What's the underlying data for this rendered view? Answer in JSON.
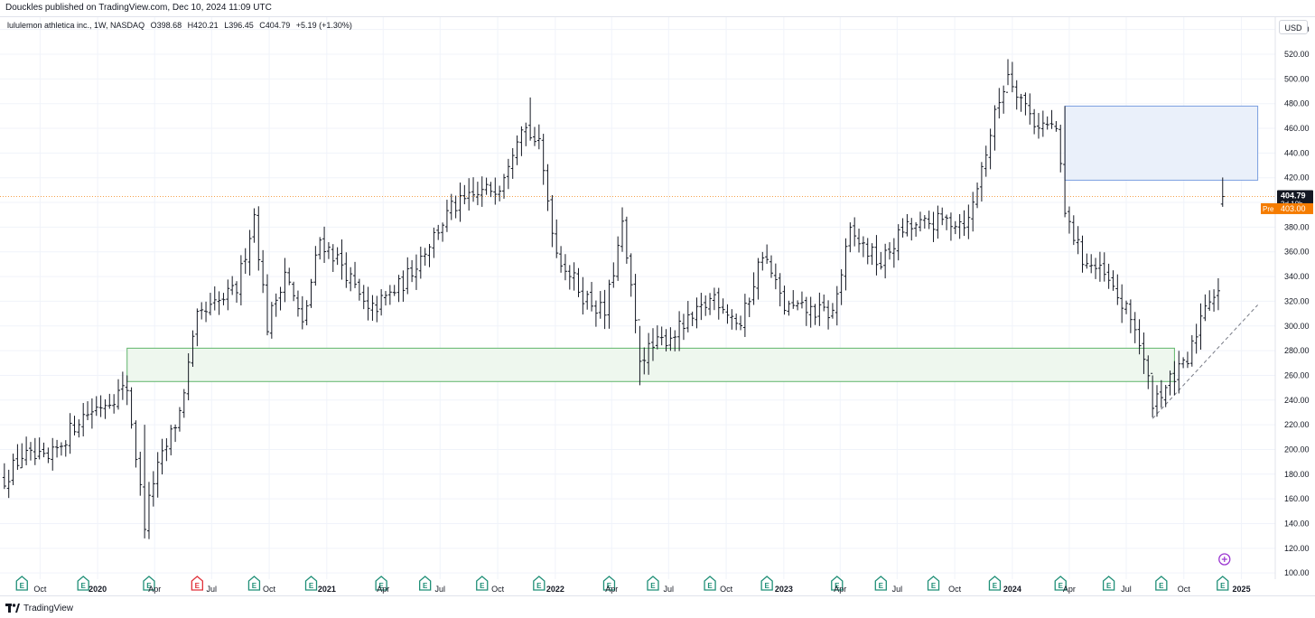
{
  "header": {
    "text": "Douckles published on TradingView.com, Dec 10, 2024 11:09 UTC"
  },
  "legend": {
    "name": "lululemon athletica inc., 1W, NASDAQ",
    "o": "O398.68",
    "h": "H420.21",
    "l": "L396.45",
    "c": "C404.79",
    "change": "+5.19 (+1.30%)"
  },
  "axis": {
    "currency": "USD",
    "last_price_label": "404.79",
    "countdown_label": "3d 10h",
    "pre_tag": "Pre",
    "pre_price_label": "403.00"
  },
  "footer": {
    "brand": "TradingView"
  },
  "colors": {
    "bars": "#131722",
    "grid": "#f0f3fa",
    "support_fill": "#eef7ee",
    "support_border": "#5fb56a",
    "resistance_fill": "#eaf0fa",
    "resistance_border": "#7b9fe0",
    "price_line": "#f5a14b",
    "pre_tag": "#f57c00",
    "earnings": "#1f8f77",
    "earnings_red": "#e0313a",
    "trendline": "#787b86"
  },
  "chart_data": {
    "type": "ohlc",
    "interval": "1W",
    "ylim": [
      95,
      550
    ],
    "y_ticks": [
      100,
      120,
      140,
      160,
      180,
      200,
      220,
      240,
      260,
      280,
      300,
      320,
      340,
      360,
      380,
      400,
      420,
      440,
      460,
      480,
      500,
      520,
      540
    ],
    "x_labels": [
      {
        "label": "Oct",
        "date": "2019-10-01"
      },
      {
        "label": "2020",
        "date": "2020-01-01"
      },
      {
        "label": "Apr",
        "date": "2020-04-01"
      },
      {
        "label": "Jul",
        "date": "2020-07-01"
      },
      {
        "label": "Oct",
        "date": "2020-10-01"
      },
      {
        "label": "2021",
        "date": "2021-01-01"
      },
      {
        "label": "Apr",
        "date": "2021-04-01"
      },
      {
        "label": "Jul",
        "date": "2021-07-01"
      },
      {
        "label": "Oct",
        "date": "2021-10-01"
      },
      {
        "label": "2022",
        "date": "2022-01-01"
      },
      {
        "label": "Apr",
        "date": "2022-04-01"
      },
      {
        "label": "Jul",
        "date": "2022-07-01"
      },
      {
        "label": "Oct",
        "date": "2022-10-01"
      },
      {
        "label": "2023",
        "date": "2023-01-01"
      },
      {
        "label": "Apr",
        "date": "2023-04-01"
      },
      {
        "label": "Jul",
        "date": "2023-07-01"
      },
      {
        "label": "Oct",
        "date": "2023-10-01"
      },
      {
        "label": "2024",
        "date": "2024-01-01"
      },
      {
        "label": "Apr",
        "date": "2024-04-01"
      },
      {
        "label": "Jul",
        "date": "2024-07-01"
      },
      {
        "label": "Oct",
        "date": "2024-10-01"
      },
      {
        "label": "2025",
        "date": "2025-01-01"
      }
    ],
    "anchors": [
      [
        "2019-08-05",
        176
      ],
      [
        "2019-09-02",
        195
      ],
      [
        "2019-10-14",
        190
      ],
      [
        "2019-12-02",
        225
      ],
      [
        "2020-02-17",
        250
      ],
      [
        "2020-03-16",
        140
      ],
      [
        "2020-03-30",
        175
      ],
      [
        "2020-05-11",
        230
      ],
      [
        "2020-06-08",
        305
      ],
      [
        "2020-08-10",
        330
      ],
      [
        "2020-09-07",
        390
      ],
      [
        "2020-09-28",
        300
      ],
      [
        "2020-10-26",
        345
      ],
      [
        "2020-11-23",
        300
      ],
      [
        "2020-12-21",
        370
      ],
      [
        "2021-01-25",
        350
      ],
      [
        "2021-03-08",
        310
      ],
      [
        "2021-05-03",
        335
      ],
      [
        "2021-07-19",
        395
      ],
      [
        "2021-10-04",
        415
      ],
      [
        "2021-11-08",
        465
      ],
      [
        "2021-12-06",
        445
      ],
      [
        "2022-01-03",
        360
      ],
      [
        "2022-02-14",
        325
      ],
      [
        "2022-03-21",
        310
      ],
      [
        "2022-04-18",
        380
      ],
      [
        "2022-05-16",
        275
      ],
      [
        "2022-06-13",
        285
      ],
      [
        "2022-08-08",
        305
      ],
      [
        "2022-09-12",
        325
      ],
      [
        "2022-10-24",
        300
      ],
      [
        "2022-11-28",
        360
      ],
      [
        "2023-01-02",
        315
      ],
      [
        "2023-03-20",
        310
      ],
      [
        "2023-04-17",
        375
      ],
      [
        "2023-06-05",
        350
      ],
      [
        "2023-07-10",
        378
      ],
      [
        "2023-09-11",
        385
      ],
      [
        "2023-10-23",
        385
      ],
      [
        "2023-12-04",
        470
      ],
      [
        "2023-12-25",
        505
      ],
      [
        "2024-02-05",
        465
      ],
      [
        "2024-03-11",
        460
      ],
      [
        "2024-03-25",
        390
      ],
      [
        "2024-04-22",
        355
      ],
      [
        "2024-05-27",
        340
      ],
      [
        "2024-07-15",
        300
      ],
      [
        "2024-08-12",
        240
      ],
      [
        "2024-09-09",
        255
      ],
      [
        "2024-10-07",
        270
      ],
      [
        "2024-11-04",
        320
      ],
      [
        "2024-11-25",
        330
      ],
      [
        "2024-12-02",
        405
      ]
    ],
    "big_moves": [
      {
        "date": "2019-09-02",
        "high": 205,
        "low": 185
      },
      {
        "date": "2020-03-16",
        "high": 220,
        "low": 128
      },
      {
        "date": "2021-11-22",
        "high": 485,
        "low": 450
      },
      {
        "date": "2022-05-16",
        "high": 300,
        "low": 252
      },
      {
        "date": "2023-12-25",
        "high": 516,
        "low": 495
      },
      {
        "date": "2024-03-25",
        "high": 478,
        "low": 388
      },
      {
        "date": "2024-08-12",
        "high": 260,
        "low": 226
      },
      {
        "date": "2024-12-02",
        "high": 420.21,
        "low": 396.45
      }
    ],
    "last_price": 404.79,
    "pre_price": 403.0,
    "zones": [
      {
        "kind": "support",
        "start": "2020-02-17",
        "end": "2024-09-16",
        "top": 282,
        "bottom": 255
      },
      {
        "kind": "resistance",
        "start": "2024-03-25",
        "end": "2025-01-27",
        "top": 478,
        "bottom": 418
      }
    ],
    "trendline": {
      "from": [
        "2024-08-12",
        225
      ],
      "to": [
        "2025-01-27",
        317
      ]
    },
    "earnings": [
      "2019-09-02",
      "2019-12-09",
      "2020-03-23",
      "2020-06-08",
      "2020-09-07",
      "2020-12-07",
      "2021-03-29",
      "2021-06-07",
      "2021-09-06",
      "2021-12-06",
      "2022-03-28",
      "2022-06-06",
      "2022-09-05",
      "2022-12-05",
      "2023-03-27",
      "2023-06-05",
      "2023-08-28",
      "2023-12-04",
      "2024-03-18",
      "2024-06-03",
      "2024-08-26",
      "2024-12-02"
    ]
  }
}
